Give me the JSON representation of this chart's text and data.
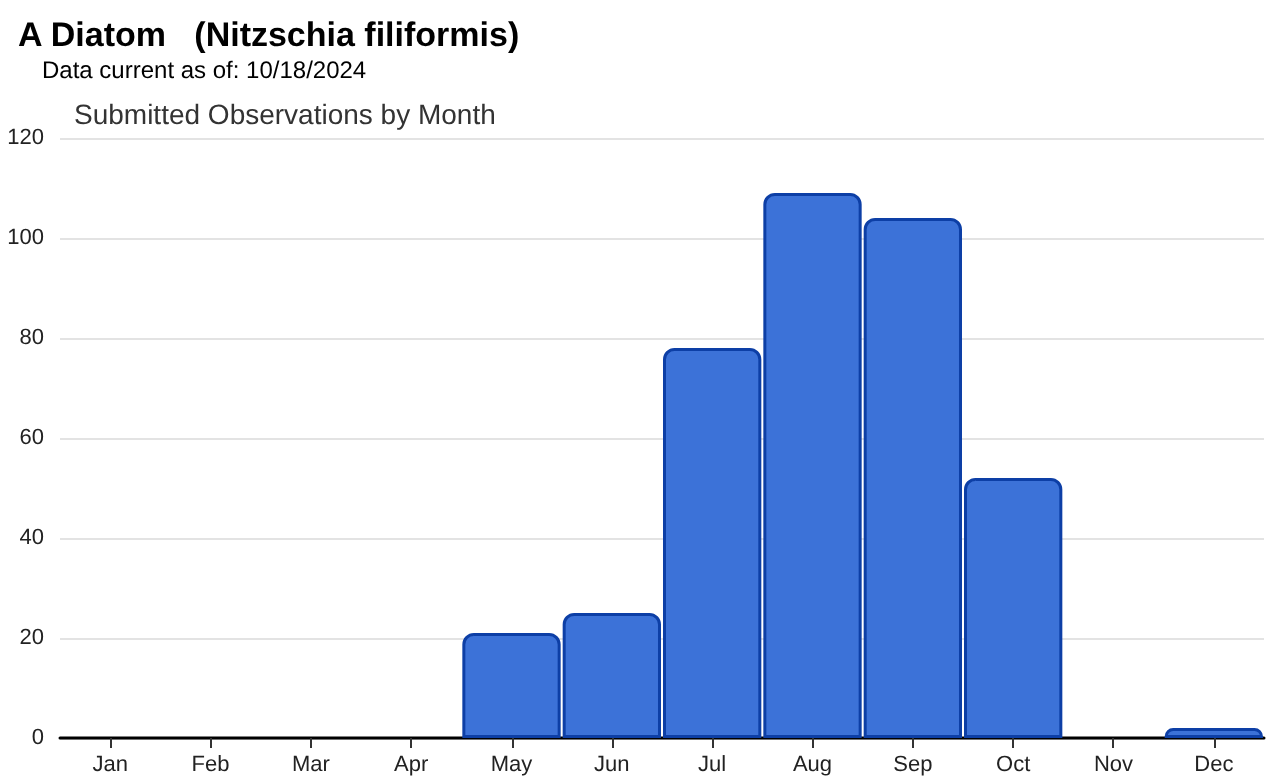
{
  "chart_data": {
    "type": "bar",
    "title": "A Diatom   (Nitzschia filiformis)",
    "subtitle": "Data current as of: 10/18/2024",
    "annotations": [
      "Submitted Observations by Month"
    ],
    "categories": [
      "Jan",
      "Feb",
      "Mar",
      "Apr",
      "May",
      "Jun",
      "Jul",
      "Aug",
      "Sep",
      "Oct",
      "Nov",
      "Dec"
    ],
    "values": [
      0,
      0,
      0,
      0,
      21,
      25,
      78,
      109,
      104,
      52,
      0,
      2
    ],
    "color": "#3c72d8",
    "ylim": [
      0,
      120
    ],
    "yticks": [
      0,
      20,
      40,
      60,
      80,
      100,
      120
    ],
    "grid": "y"
  }
}
